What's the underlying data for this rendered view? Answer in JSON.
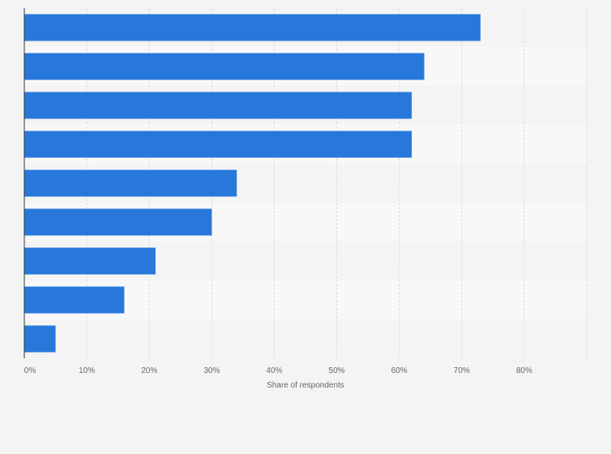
{
  "chart_data": {
    "type": "bar",
    "orientation": "horizontal",
    "title": "",
    "xlabel": "Share of respondents",
    "ylabel": "",
    "categories": [
      "",
      "",
      "",
      "",
      "",
      "",
      "",
      "",
      ""
    ],
    "values": [
      73,
      64,
      62,
      62,
      34,
      30,
      21,
      16,
      5
    ],
    "xlim": [
      0,
      90
    ],
    "xticks": [
      0,
      10,
      20,
      30,
      40,
      50,
      60,
      70,
      80
    ],
    "xtick_labels": [
      "0%",
      "10%",
      "20%",
      "30%",
      "40%",
      "50%",
      "60%",
      "70%",
      "80%"
    ],
    "grid": "vertical",
    "legend": "none",
    "colors": {
      "bar": "#2878dc",
      "band_dark": "#f4f4f4",
      "band_light": "#f8f8f8",
      "grid": "#dcdcdc",
      "axis": "#333333",
      "text": "#666666",
      "background": "#f4f4f4"
    }
  }
}
